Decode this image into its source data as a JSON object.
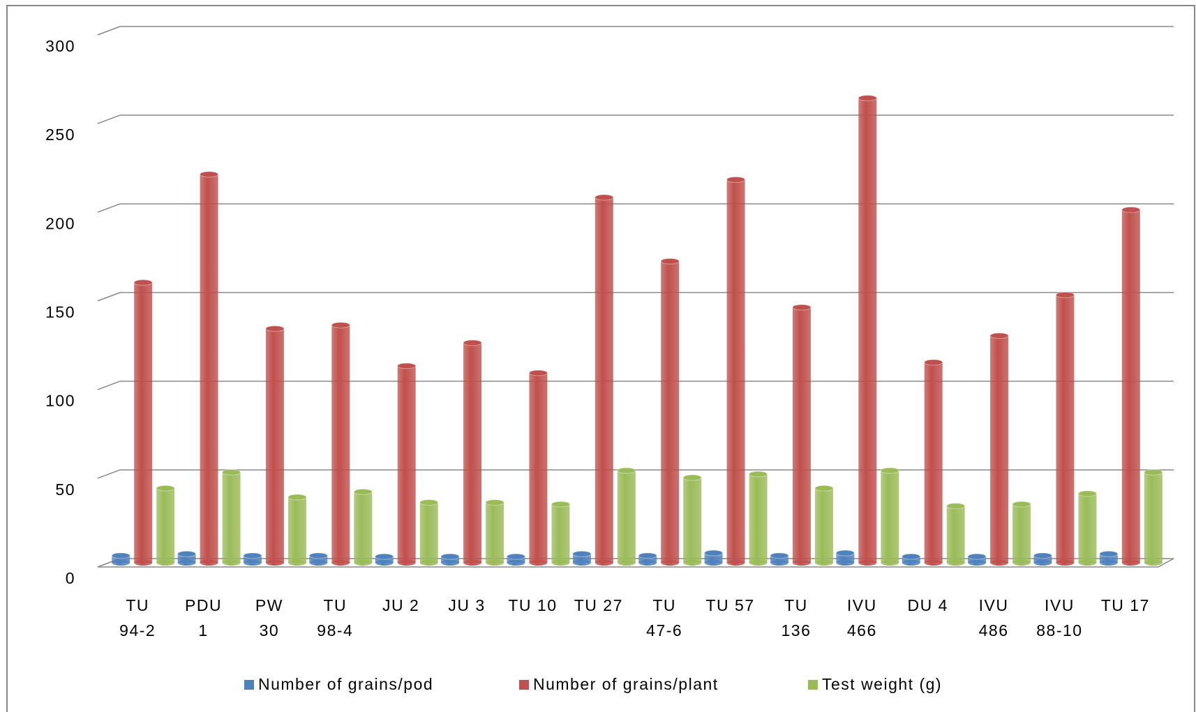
{
  "chart_data": {
    "type": "bar",
    "categories": [
      "TU\n94-2",
      "PDU\n1",
      "PW\n30",
      "TU\n98-4",
      "JU 2",
      "JU 3",
      "TU 10",
      "TU 27",
      "TU\n47-6",
      "TU 57",
      "TU\n136",
      "IVU\n466",
      "DU 4",
      "IVU\n486",
      "IVU\n88-10",
      "TU 17"
    ],
    "series": [
      {
        "name": "Number of grains/pod",
        "color": "#4f81bd",
        "values": [
          4,
          5,
          4,
          4,
          3.5,
          3.5,
          3.5,
          5,
          4,
          5.5,
          4,
          5.5,
          3.5,
          3.5,
          4,
          5
        ]
      },
      {
        "name": "Number of grains/plant",
        "color": "#c0504d",
        "values": [
          158,
          219,
          132,
          134,
          111,
          124,
          107,
          206,
          170,
          216,
          144,
          262,
          113,
          128,
          151,
          199
        ]
      },
      {
        "name": "Test weight (g)",
        "color": "#9bbb59",
        "values": [
          42,
          51,
          37,
          40,
          34,
          34,
          33,
          52,
          48,
          50,
          42,
          52,
          32,
          33,
          39,
          51
        ]
      }
    ],
    "ylim": [
      0,
      300
    ],
    "yticks": [
      0,
      50,
      100,
      150,
      200,
      250,
      300
    ],
    "grid": true,
    "legend": "bottom"
  }
}
